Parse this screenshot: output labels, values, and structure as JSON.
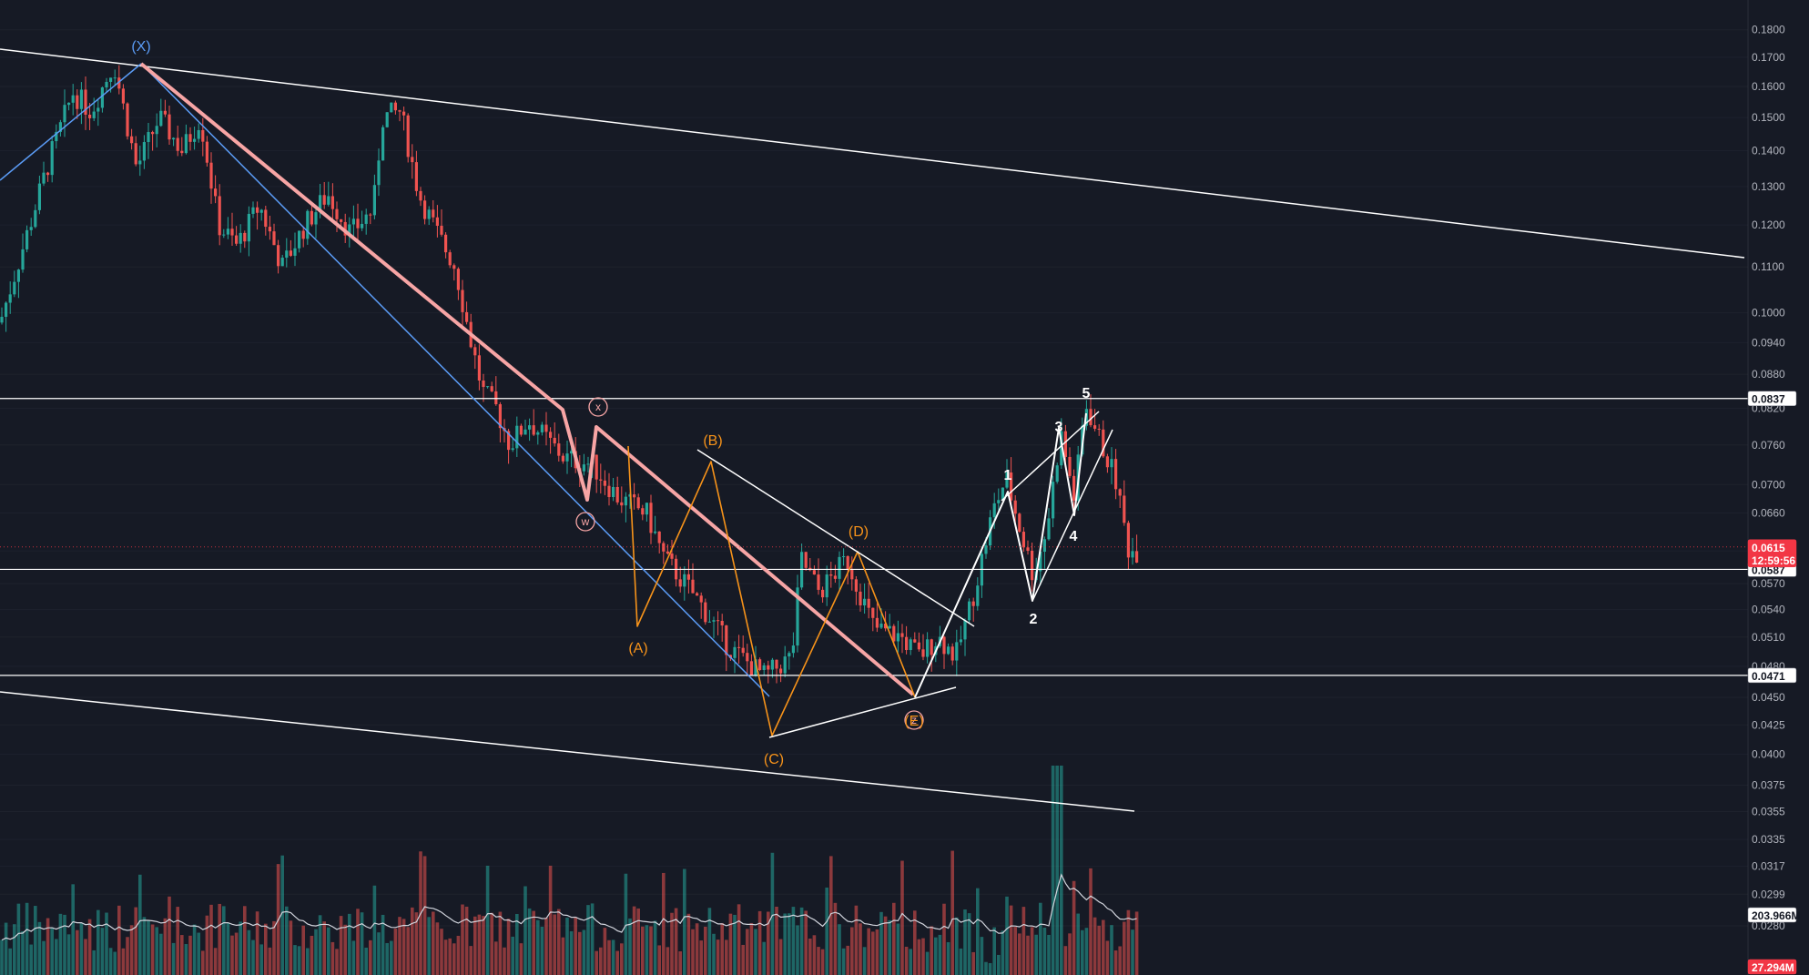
{
  "chart_data": {
    "type": "candlestick",
    "price_axis": {
      "ticks": [
        "0.1800",
        "0.1700",
        "0.1600",
        "0.1500",
        "0.1400",
        "0.1300",
        "0.1200",
        "0.1100",
        "0.1000",
        "0.0940",
        "0.0880",
        "0.0820",
        "0.0760",
        "0.0700",
        "0.0660",
        "0.0610",
        "0.0570",
        "0.0540",
        "0.0510",
        "0.0480",
        "0.0450",
        "0.0425",
        "0.0400",
        "0.0375",
        "0.0355",
        "0.0335",
        "0.0317",
        "0.0299",
        "0.0280"
      ],
      "scale": "log"
    },
    "horizontal_levels": [
      {
        "value": 0.0837,
        "label": "0.0837"
      },
      {
        "value": 0.0587,
        "label": "0.0587"
      },
      {
        "value": 0.0471,
        "label": "0.0471"
      }
    ],
    "last_price": {
      "value": "0.0615",
      "countdown": "12:59:56",
      "color": "#f23645"
    },
    "volume": {
      "ma_value": "203.966M",
      "last_value": "27.294M"
    },
    "wave_labels": {
      "primary": [
        "(X)"
      ],
      "circled": [
        "w",
        "x",
        "z"
      ],
      "orange": [
        "(A)",
        "(B)",
        "(C)",
        "(D)",
        "(E)"
      ],
      "impulse": [
        "1",
        "2",
        "3",
        "4",
        "5"
      ]
    },
    "colors": {
      "background": "#161a25",
      "up": "#26a69a",
      "down": "#ef5350",
      "wave_blue": "#5b9cf6",
      "wave_pink": "#f7a5a5",
      "wave_orange": "#f7931a",
      "lines": "#ffffff"
    }
  }
}
